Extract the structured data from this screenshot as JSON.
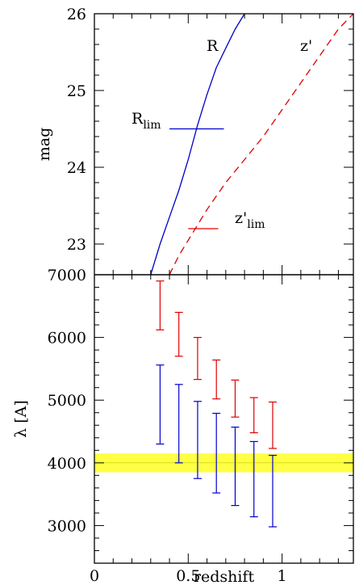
{
  "chart_data": [
    {
      "type": "line",
      "panel": "top",
      "xlabel": "",
      "ylabel": "mag",
      "xlim": [
        0,
        1.38
      ],
      "ylim": [
        22.6,
        26
      ],
      "yticks": [
        "23",
        "24",
        "25",
        "26"
      ],
      "series": [
        {
          "name": "R",
          "color": "#0000cc",
          "style": "solid",
          "x": [
            0.3,
            0.35,
            0.4,
            0.45,
            0.5,
            0.55,
            0.6,
            0.65,
            0.7,
            0.75,
            0.8
          ],
          "y": [
            22.6,
            23.0,
            23.35,
            23.7,
            24.1,
            24.55,
            24.95,
            25.3,
            25.55,
            25.8,
            26.0
          ]
        },
        {
          "name": "z'",
          "color": "#dd0000",
          "style": "dashed",
          "x": [
            0.4,
            0.45,
            0.5,
            0.6,
            0.7,
            0.8,
            0.9,
            1.0,
            1.1,
            1.2,
            1.3,
            1.38
          ],
          "y": [
            22.6,
            22.85,
            23.05,
            23.45,
            23.8,
            24.1,
            24.4,
            24.75,
            25.1,
            25.45,
            25.8,
            26.0
          ]
        }
      ],
      "limits": [
        {
          "name": "R",
          "sub": "lim",
          "color": "#0000cc",
          "x1": 0.4,
          "x2": 0.69,
          "y": 24.5
        },
        {
          "name": "z'",
          "sub": "lim",
          "color": "#dd0000",
          "x1": 0.5,
          "x2": 0.66,
          "y": 23.2
        }
      ]
    },
    {
      "type": "errorbar",
      "panel": "bottom",
      "xlabel": "redshift",
      "ylabel": "λ [A]",
      "xlim": [
        0,
        1.38
      ],
      "ylim": [
        2400,
        7000
      ],
      "xticks": [
        "0",
        "0.5",
        "1"
      ],
      "yticks": [
        "3000",
        "4000",
        "5000",
        "6000",
        "7000"
      ],
      "band": {
        "y1": 3850,
        "y2": 4150,
        "color": "#ffff44"
      },
      "series": [
        {
          "color": "#dd0000",
          "x": [
            0.35,
            0.45,
            0.55,
            0.65,
            0.75,
            0.85,
            0.95
          ],
          "ylow": [
            6120,
            5700,
            5330,
            5020,
            4730,
            4480,
            4230
          ],
          "yhigh": [
            6900,
            6400,
            6000,
            5640,
            5320,
            5040,
            4970
          ]
        },
        {
          "color": "#0000cc",
          "x": [
            0.35,
            0.45,
            0.55,
            0.65,
            0.75,
            0.85,
            0.95
          ],
          "ylow": [
            4300,
            4000,
            3750,
            3520,
            3320,
            3140,
            2980
          ],
          "yhigh": [
            5560,
            5250,
            4980,
            4790,
            4570,
            4340,
            4120
          ]
        }
      ]
    }
  ]
}
